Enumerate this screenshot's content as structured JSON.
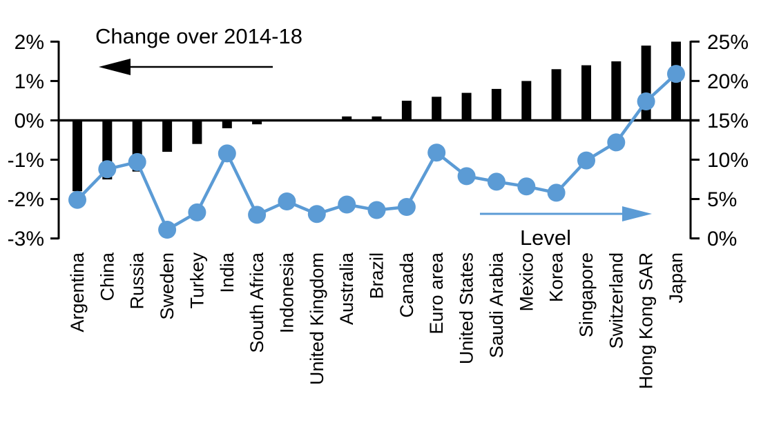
{
  "chart_data": {
    "type": "combo-bar-line",
    "title": "",
    "categories": [
      "Argentina",
      "China",
      "Russia",
      "Sweden",
      "Turkey",
      "India",
      "South Africa",
      "Indonesia",
      "United Kingdom",
      "Australia",
      "Brazil",
      "Canada",
      "Euro area",
      "United States",
      "Saudi Arabia",
      "Mexico",
      "Korea",
      "Singapore",
      "Switzerland",
      "Hong Kong SAR",
      "Japan"
    ],
    "series": [
      {
        "name": "Change over 2014-18",
        "type": "bar",
        "axis": "left",
        "color": "#000000",
        "values": [
          -1.8,
          -1.5,
          -1.3,
          -0.8,
          -0.6,
          -0.2,
          -0.1,
          0,
          0,
          0.1,
          0.1,
          0.5,
          0.6,
          0.7,
          0.8,
          1.0,
          1.3,
          1.4,
          1.5,
          1.9,
          2.0
        ]
      },
      {
        "name": "Level",
        "type": "line",
        "axis": "right",
        "color": "#5B9BD5",
        "values": [
          4.9,
          8.8,
          9.7,
          1.1,
          3.3,
          10.8,
          3.0,
          4.7,
          3.1,
          4.3,
          3.6,
          4.0,
          10.9,
          7.9,
          7.2,
          6.6,
          5.8,
          9.9,
          12.2,
          17.4,
          20.9
        ]
      }
    ],
    "left_axis": {
      "min": -3,
      "max": 2,
      "tick_values": [
        2,
        1,
        0,
        -1,
        -2,
        -3
      ],
      "tick_labels": [
        "2%",
        "1%",
        "0%",
        "-1%",
        "-2%",
        "-3%"
      ]
    },
    "right_axis": {
      "min": 0,
      "max": 25,
      "tick_values": [
        25,
        20,
        15,
        10,
        5,
        0
      ],
      "tick_labels": [
        "25%",
        "20%",
        "15%",
        "10%",
        "5%",
        "0%"
      ]
    },
    "annotations": {
      "change": {
        "label": "Change over 2014-18",
        "arrow_direction": "left",
        "color": "#000000"
      },
      "level": {
        "label": "Level",
        "arrow_direction": "right",
        "color": "#5B9BD5"
      }
    },
    "grid": false,
    "legend_position": "none",
    "colors": {
      "bar": "#000000",
      "line": "#5B9BD5",
      "axis": "#000000",
      "background": "#ffffff"
    }
  }
}
